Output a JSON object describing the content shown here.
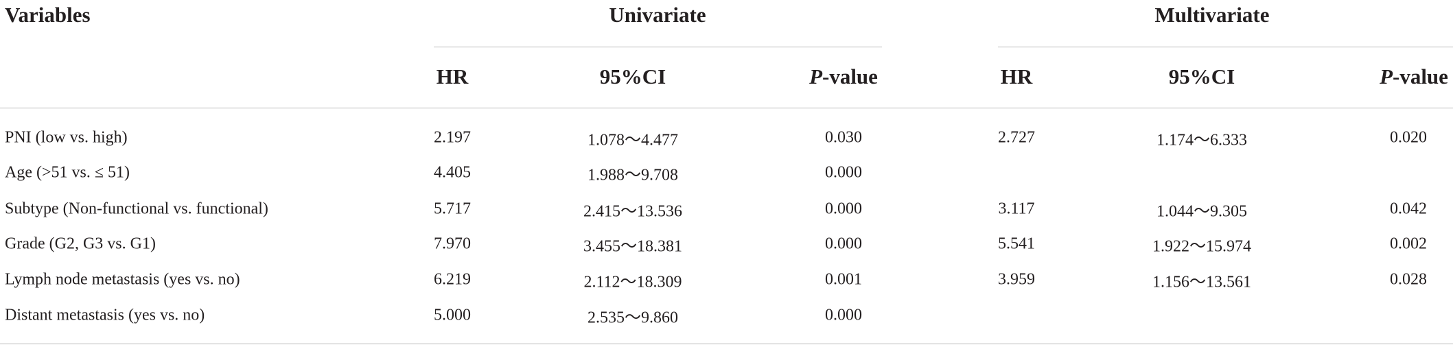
{
  "table": {
    "header": {
      "variables": "Variables",
      "groups": [
        "Univariate",
        "Multivariate"
      ],
      "columns": [
        "HR",
        "95%CI",
        "P-value",
        "HR",
        "95%CI",
        "P-value"
      ]
    },
    "rows": [
      [
        "PNI (low vs. high)",
        "2.197",
        "1.078～4.477",
        "0.030",
        "2.727",
        "1.174～6.333",
        "0.020"
      ],
      [
        "Age (>51 vs. ≤ 51)",
        "4.405",
        "1.988～9.708",
        "0.000",
        null,
        null,
        null
      ],
      [
        "Subtype (Non-functional vs. functional)",
        "5.717",
        "2.415～13.536",
        "0.000",
        "3.117",
        "1.044～9.305",
        "0.042"
      ],
      [
        "Grade (G2, G3 vs. G1)",
        "7.970",
        "3.455～18.381",
        "0.000",
        "5.541",
        "1.922～15.974",
        "0.002"
      ],
      [
        "Lymph node metastasis (yes vs. no)",
        "6.219",
        "2.112～18.309",
        "0.001",
        "3.959",
        "1.156～13.561",
        "0.028"
      ],
      [
        "Distant metastasis (yes vs. no)",
        "5.000",
        "2.535～9.860",
        "0.000",
        null,
        null,
        null
      ]
    ]
  }
}
